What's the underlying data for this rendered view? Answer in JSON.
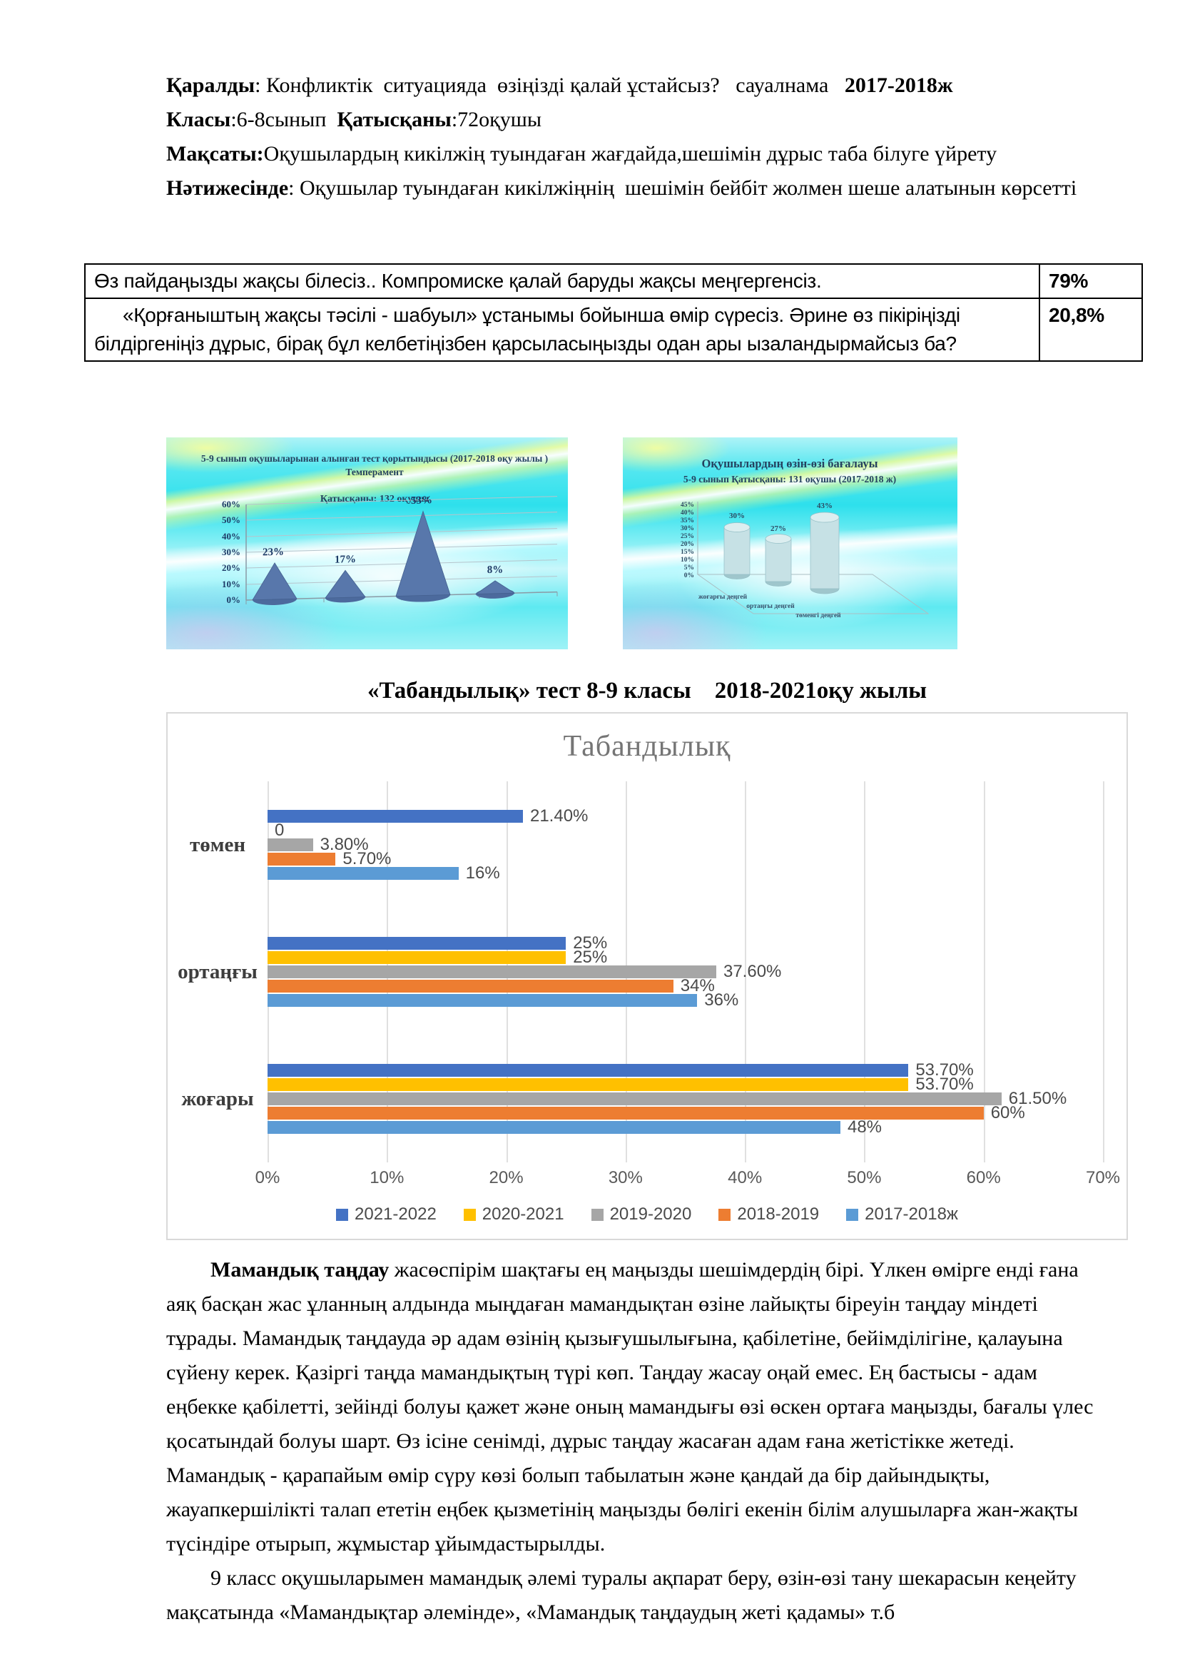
{
  "page": {
    "background": "#ffffff"
  },
  "intro": {
    "p1": {
      "b1": "Қаралды",
      "t1": ": Конфликтік  ситуацияда  өзіңізді қалай ұстайсыз?   сауалнама   ",
      "b2": "2017-2018ж"
    },
    "p2": {
      "b1": "Класы",
      "t1": ":6-8сынып  ",
      "b2": "Қатысқаны",
      "t2": ":72оқушы"
    },
    "p3": {
      "b1": "Мақсаты:",
      "t1": "Оқушылардың кикілжің туындаған жағдайда,шешімін дұрыс таба білуге үйрету"
    },
    "p4": {
      "b1": "Нәтижесінде",
      "t1": ": Оқушылар туындаған кикілжіңнің  шешімін бейбіт жолмен шеше алатынын көрсетті"
    }
  },
  "results_table": {
    "rows": [
      {
        "text": "Өз пайдаңызды жақсы білесіз.. Компромиске қалай баруды жақсы меңгергенсіз.",
        "value": "79%"
      },
      {
        "text": "«Қорғаныштың жақсы тәсілі - шабуыл» ұстанымы бойынша өмір сүресіз. Әрине өз пікіріңізді білдіргеніңіз дұрыс, бірақ бұл келбетіңізбен қарсыласыңызды одан ары ызаландырмайсыз ба?",
        "value": "20,8%"
      }
    ]
  },
  "heading": "«Табандылық» тест 8-9 класы    2018-2021оқу жылы",
  "chart_data": [
    {
      "type": "bar",
      "style": "3d-cone",
      "title": "5-9 сынып   оқушыларынан  алынған тест қорытындысы    (2017-2018 оқу жылы )",
      "subtitle": "Темперамент",
      "note": "Қатысқаны: 132 оқушы",
      "values": [
        23,
        17,
        53,
        8
      ],
      "labels": [
        "23%",
        "17%",
        "53%",
        "8%"
      ],
      "ylim": [
        0,
        60
      ],
      "yticks": [
        "60%",
        "50%",
        "40%",
        "30%",
        "20%",
        "10%",
        "0%"
      ]
    },
    {
      "type": "bar",
      "style": "3d-cylinder",
      "title": "Оқушылардың   өзін-өзі бағалауы",
      "subtitle": "5-9 сынып   Қатысқаны: 131 оқушы  (2017-2018 ж)",
      "categories": [
        "жоғарғы деңгей",
        "ортаңғы деңгей",
        "төменгі деңгей"
      ],
      "values": [
        30,
        27,
        43
      ],
      "labels": [
        "30%",
        "27%",
        "43%"
      ],
      "ylim": [
        0,
        45
      ],
      "yticks": [
        "45%",
        "40%",
        "35%",
        "30%",
        "25%",
        "20%",
        "15%",
        "10%",
        "5%",
        "0%"
      ]
    },
    {
      "type": "bar",
      "orientation": "horizontal",
      "title": "Табандылық",
      "categories": [
        "төмен",
        "ортаңғы",
        "жоғары"
      ],
      "series": [
        {
          "name": "2021-2022",
          "color": "#4472C4",
          "values": [
            21.4,
            25,
            53.7
          ],
          "labels": [
            "21.40%",
            "25%",
            "53.70%"
          ]
        },
        {
          "name": "2020-2021",
          "color": "#FFC000",
          "values": [
            0,
            25,
            53.7
          ],
          "labels": [
            "0",
            "25%",
            "53.70%"
          ]
        },
        {
          "name": "2019-2020",
          "color": "#A6A6A6",
          "values": [
            3.8,
            37.6,
            61.5
          ],
          "labels": [
            "3.80%",
            "37.60%",
            "61.50%"
          ]
        },
        {
          "name": "2018-2019",
          "color": "#ED7D31",
          "values": [
            5.7,
            34,
            60
          ],
          "labels": [
            "5.70%",
            "34%",
            "60%"
          ]
        },
        {
          "name": "2017-2018ж",
          "color": "#5B9BD5",
          "values": [
            16,
            36,
            48
          ],
          "labels": [
            "16%",
            "36%",
            "48%"
          ]
        }
      ],
      "xlim": [
        0,
        70
      ],
      "xticks": [
        "0%",
        "10%",
        "20%",
        "30%",
        "40%",
        "50%",
        "60%",
        "70%"
      ],
      "legend_position": "bottom",
      "grid": "vertical"
    }
  ],
  "body": {
    "p1_bold": "Мамандық таңдау",
    "p1_rest": " жасөспірім шақтағы ең маңызды шешімдердің бірі. Үлкен өмірге енді ғана аяқ басқан жас ұланның алдында мыңдаған мамандықтан өзіне лайықты біреуін таңдау міндеті тұрады. Мамандық таңдауда әр адам өзінің қызығушылығына, қабілетіне, бейімділігіне, қалауына сүйену керек. Қазіргі таңда мамандықтың түрі көп. Таңдау жасау оңай емес. Ең бастысы - адам еңбекке қабілетті, зейінді болуы қажет және оның мамандығы өзі өскен ортаға маңызды, бағалы үлес қосатындай болуы шарт. Өз ісіне сенімді, дұрыс таңдау жасаған адам ғана жетістікке жетеді. Мамандық - қарапайым өмір сүру көзі болып табылатын және қандай да бір дайындықты, жауапкершілікті талап ететін еңбек қызметінің маңызды бөлігі екенін білім алушыларға жан-жақты түсіндіре отырып, жұмыстар ұйымдастырылды.",
    "p2": "9 класс оқушыларымен мамандық әлемі туралы ақпарат беру, өзін-өзі тану шекарасын кеңейту мақсатында «Мамандықтар әлемінде», «Мамандық  таңдаудың жеті қадамы» т.б"
  }
}
